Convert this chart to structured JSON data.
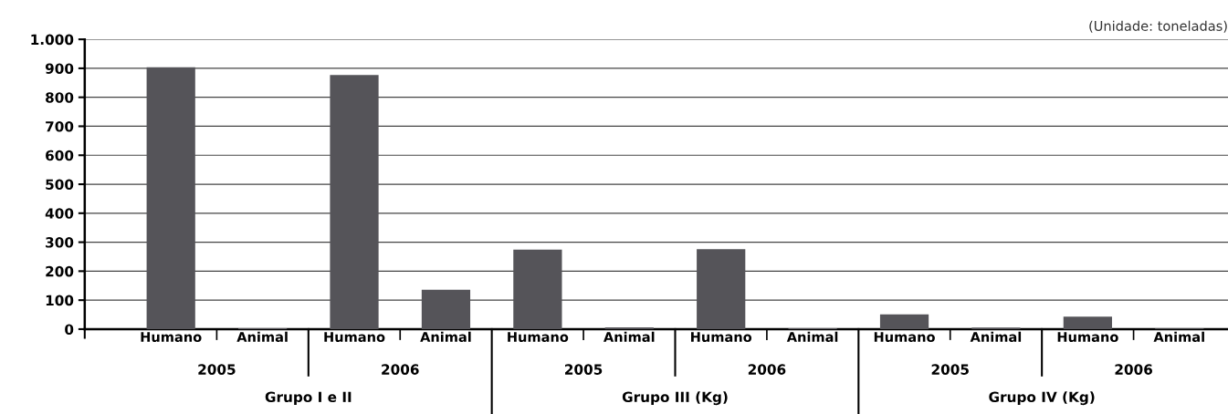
{
  "chart_data": {
    "type": "bar",
    "categories": [
      "Humano",
      "Animal",
      "Humano",
      "Animal",
      "Humano",
      "Animal",
      "Humano",
      "Animal",
      "Humano",
      "Animal",
      "Humano",
      "Animal"
    ],
    "values": [
      904,
      3,
      877,
      136,
      274,
      6,
      276,
      3,
      51,
      5,
      43,
      2
    ],
    "color": "#555459",
    "ylim": [
      0,
      1000
    ],
    "yticks": [
      0,
      100,
      200,
      300,
      400,
      500,
      600,
      700,
      800,
      900,
      {
        "value": 1000,
        "label": "1.000"
      }
    ],
    "grid": "y",
    "annotations": [
      "(Unidade: toneladas)",
      "2005",
      "2006",
      "2005",
      "2006",
      "2005",
      "2006",
      "Grupo I e II",
      "Grupo III (Kg)",
      "Grupo IV (Kg)"
    ]
  }
}
